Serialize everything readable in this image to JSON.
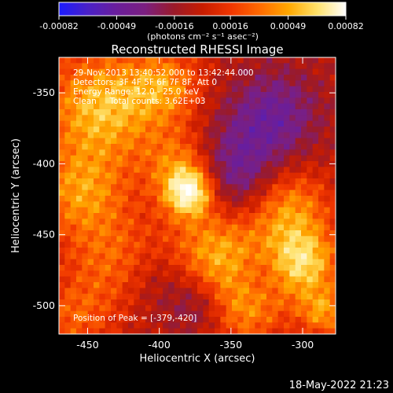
{
  "colorbar": {
    "ticks": [
      "-0.00082",
      "-0.00049",
      "-0.00016",
      "0.00016",
      "0.00049",
      "0.00082"
    ],
    "units": "(photons cm⁻² s⁻¹ asec⁻²)",
    "stops": [
      "#1b1bff",
      "#4a21c7",
      "#6a1e9b",
      "#7b1f80",
      "#9a1a2a",
      "#c81c00",
      "#f03600",
      "#ff6a00",
      "#ffa800",
      "#ffe26b",
      "#ffffff"
    ]
  },
  "footer": {
    "timestamp": "18-May-2022 21:23"
  },
  "chart_data": {
    "type": "heatmap",
    "title": "Reconstructed RHESSI Image",
    "xlabel": "Heliocentric X (arcsec)",
    "ylabel": "Heliocentric Y (arcsec)",
    "xlim": [
      -470,
      -277
    ],
    "ylim": [
      -520,
      -325
    ],
    "xticks": [
      -450,
      -400,
      -350,
      -300
    ],
    "yticks": [
      -350,
      -400,
      -450,
      -500
    ],
    "annotations": [
      "29-Nov-2013 13:40:52.000 to 13:42:44.000",
      "Detectors: 3F 4F 5F 6F 7F 8F, Att 0",
      "Energy Range: 12.0 - 25.0 keV",
      "Clean     Total counts: 3.62E+03"
    ],
    "peak_label": "Position of Peak = [-379,-420]",
    "peak": {
      "x": -379,
      "y": -420
    },
    "colorbar_range": [
      -0.00082,
      0.00082
    ]
  }
}
